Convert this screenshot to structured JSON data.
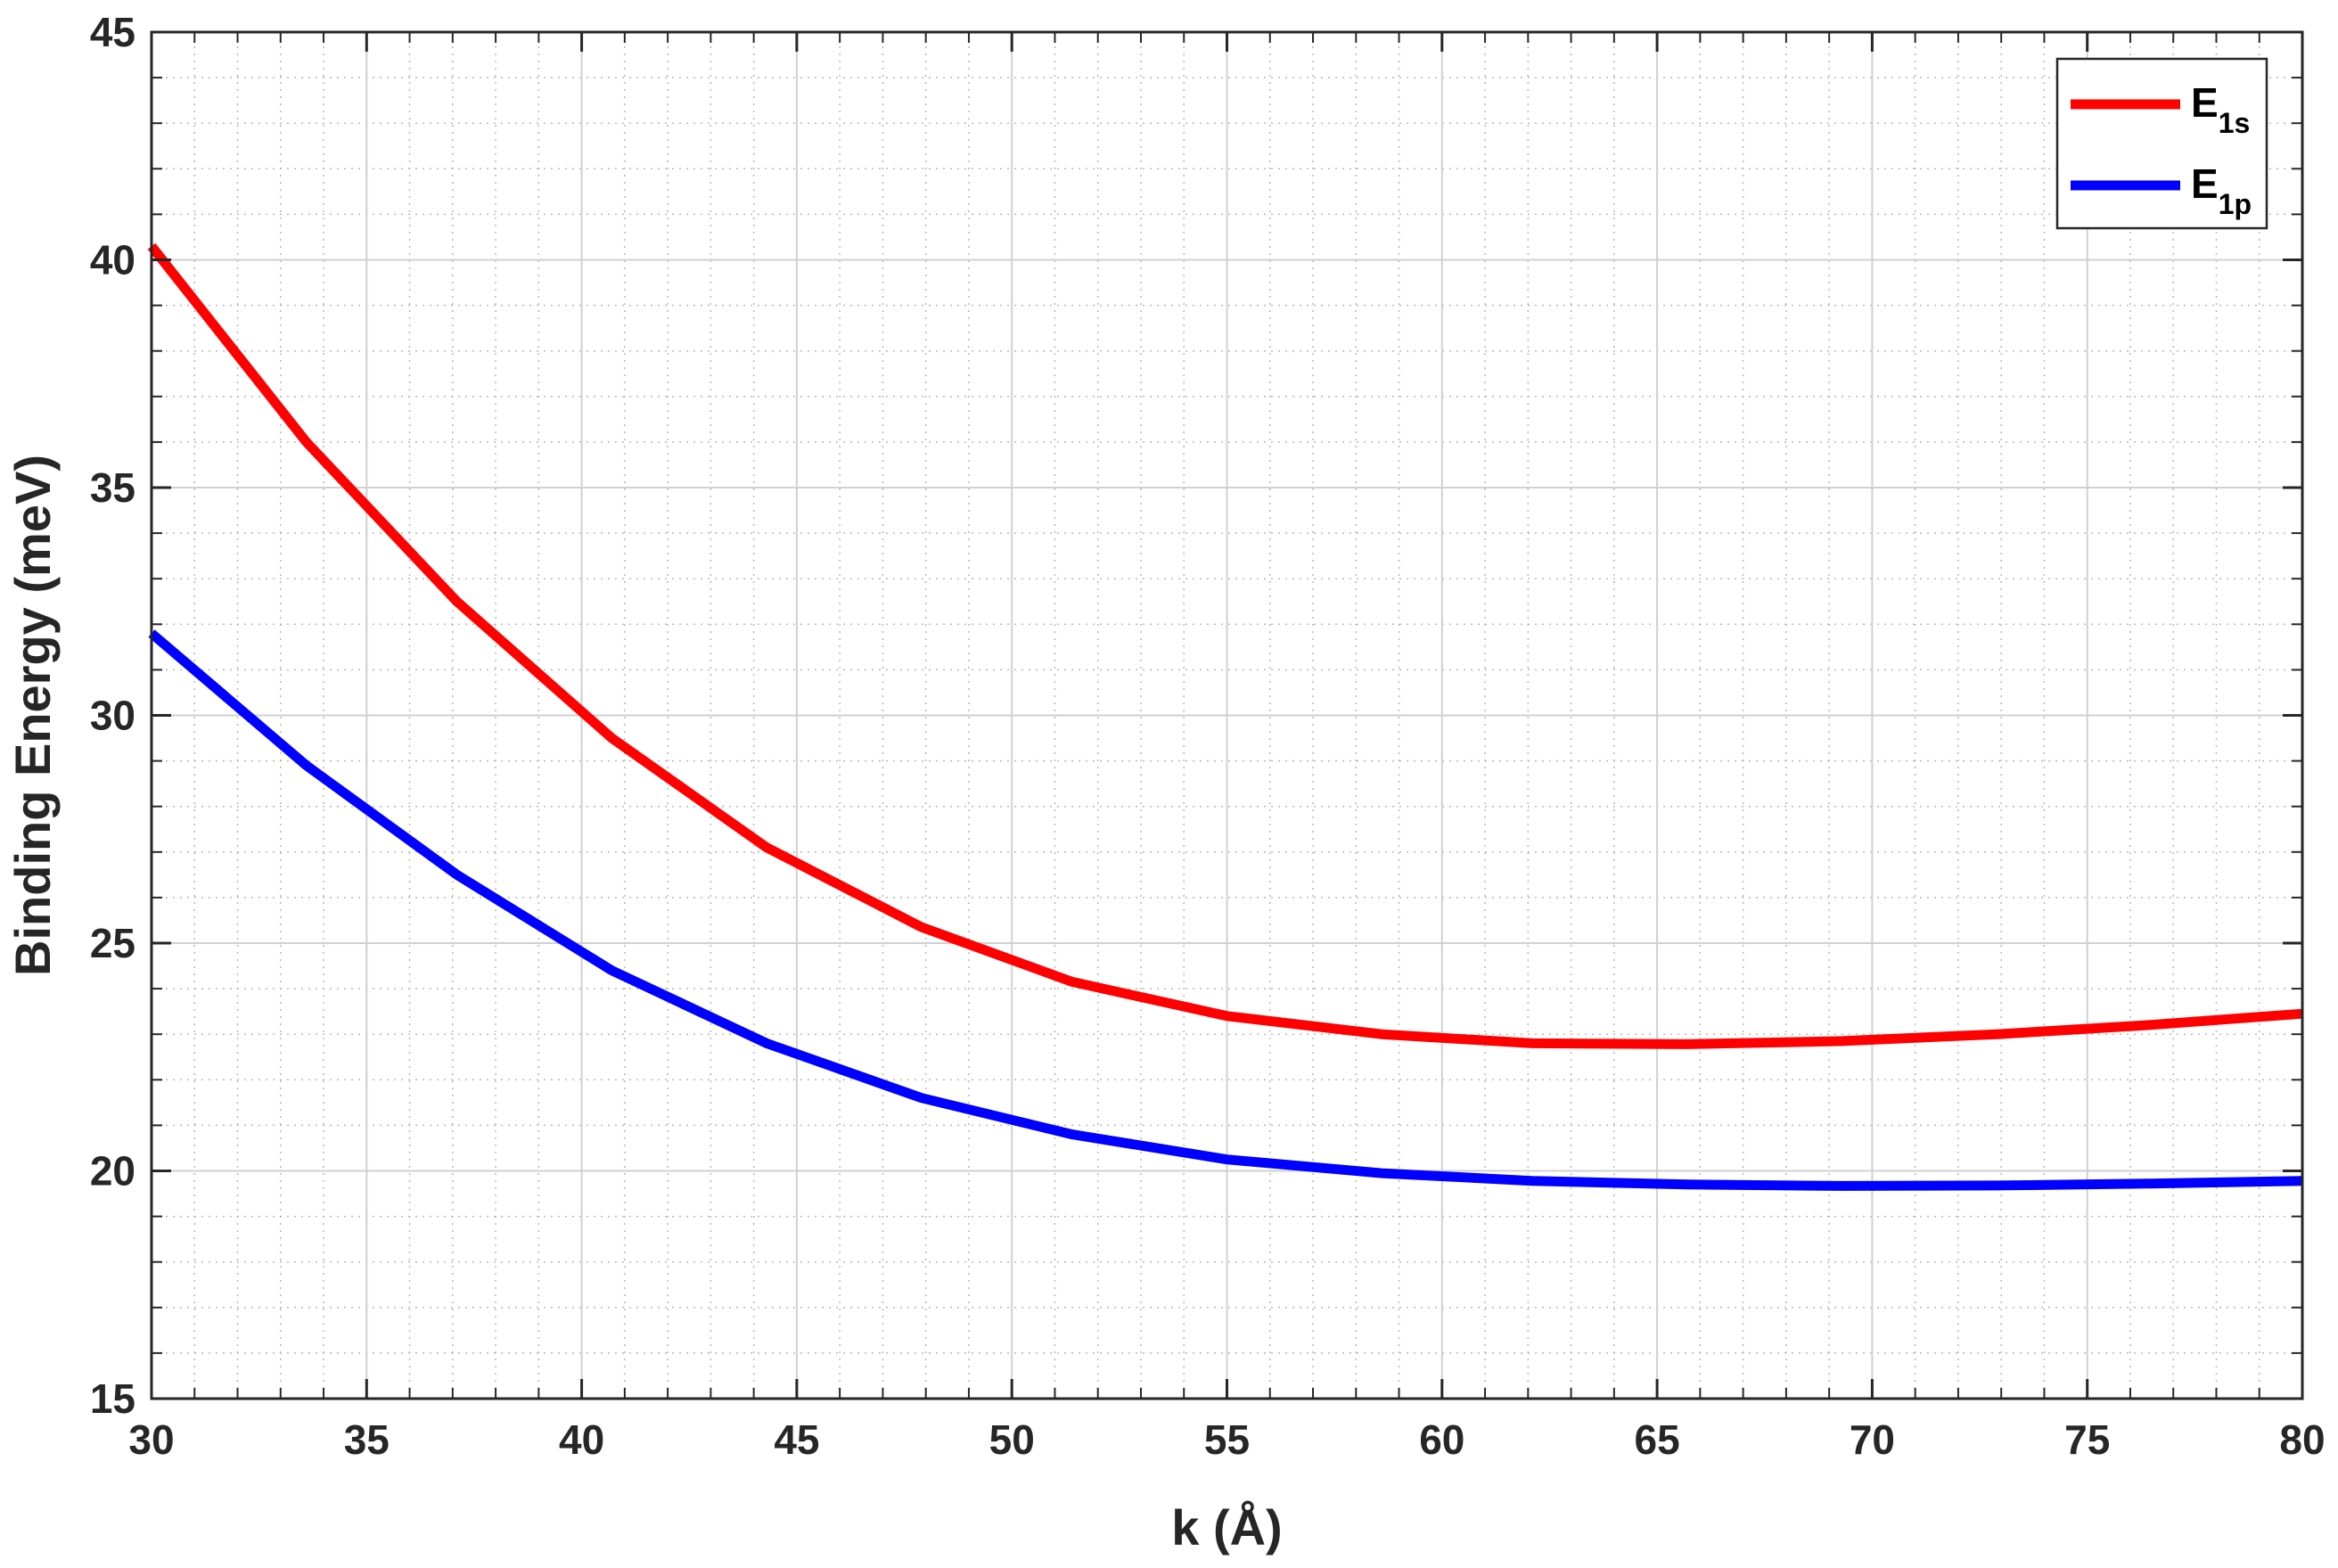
{
  "chart_data": {
    "type": "line",
    "xlabel": "k (Å)",
    "ylabel": "Binding Energy (meV)",
    "xlim": [
      30,
      80
    ],
    "ylim": [
      15,
      45
    ],
    "xticks": [
      30,
      35,
      40,
      45,
      50,
      55,
      60,
      65,
      70,
      75,
      80
    ],
    "yticks": [
      15,
      20,
      25,
      30,
      35,
      40,
      45
    ],
    "grid": true,
    "minor_grid": true,
    "legend_position": "top-right",
    "series": [
      {
        "name": "E",
        "subscript": "1s",
        "color": "#ff0000",
        "x": [
          30,
          33.6,
          37.1,
          40.7,
          44.3,
          47.9,
          51.4,
          55.0,
          58.6,
          62.1,
          65.7,
          69.3,
          72.9,
          76.4,
          80
        ],
        "y": [
          40.3,
          36.0,
          32.5,
          29.5,
          27.1,
          25.35,
          24.15,
          23.4,
          23.0,
          22.8,
          22.78,
          22.85,
          23.0,
          23.2,
          23.45
        ]
      },
      {
        "name": "E",
        "subscript": "1p",
        "color": "#0000ff",
        "x": [
          30,
          33.6,
          37.1,
          40.7,
          44.3,
          47.9,
          51.4,
          55.0,
          58.6,
          62.1,
          65.7,
          69.3,
          72.9,
          76.4,
          80
        ],
        "y": [
          31.8,
          28.9,
          26.5,
          24.4,
          22.8,
          21.6,
          20.8,
          20.25,
          19.95,
          19.78,
          19.7,
          19.67,
          19.68,
          19.72,
          19.78
        ]
      }
    ]
  }
}
